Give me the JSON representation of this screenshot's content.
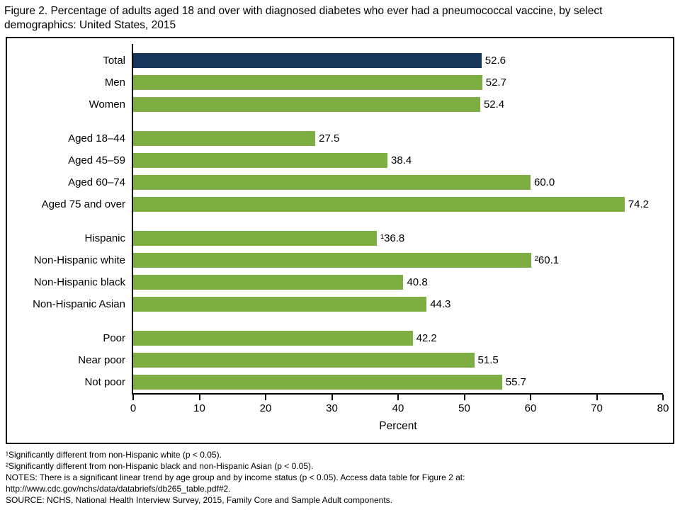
{
  "title": "Figure 2. Percentage of adults aged 18 and over with diagnosed diabetes who ever had a pneumococcal vaccine, by select demographics: United States, 2015",
  "chart_data": {
    "type": "bar",
    "orientation": "horizontal",
    "title": "Figure 2. Percentage of adults aged 18 and over with diagnosed diabetes who ever had a pneumococcal vaccine, by select demographics: United States, 2015",
    "xlabel": "Percent",
    "ylabel": "",
    "xlim": [
      0,
      80
    ],
    "xticks": [
      0,
      10,
      20,
      30,
      40,
      50,
      60,
      70,
      80
    ],
    "grid": false,
    "legend": false,
    "colors": {
      "total_bar": "#16365c",
      "bar": "#7cae41"
    },
    "rows": [
      {
        "label": "Total",
        "value": 52.6,
        "value_label": "52.6",
        "highlight": true
      },
      {
        "label": "Men",
        "value": 52.7,
        "value_label": "52.7",
        "highlight": false
      },
      {
        "label": "Women",
        "value": 52.4,
        "value_label": "52.4",
        "highlight": false
      },
      {
        "label": "Aged 18–44",
        "value": 27.5,
        "value_label": "27.5",
        "highlight": false
      },
      {
        "label": "Aged 45–59",
        "value": 38.4,
        "value_label": "38.4",
        "highlight": false
      },
      {
        "label": "Aged 60–74",
        "value": 60.0,
        "value_label": "60.0",
        "highlight": false
      },
      {
        "label": "Aged 75 and over",
        "value": 74.2,
        "value_label": "74.2",
        "highlight": false
      },
      {
        "label": "Hispanic",
        "value": 36.8,
        "value_label": "¹36.8",
        "highlight": false
      },
      {
        "label": "Non-Hispanic white",
        "value": 60.1,
        "value_label": "²60.1",
        "highlight": false
      },
      {
        "label": "Non-Hispanic black",
        "value": 40.8,
        "value_label": "40.8",
        "highlight": false
      },
      {
        "label": "Non-Hispanic Asian",
        "value": 44.3,
        "value_label": "44.3",
        "highlight": false
      },
      {
        "label": "Poor",
        "value": 42.2,
        "value_label": "42.2",
        "highlight": false
      },
      {
        "label": "Near poor",
        "value": 51.5,
        "value_label": "51.5",
        "highlight": false
      },
      {
        "label": "Not poor",
        "value": 55.7,
        "value_label": "55.7",
        "highlight": false
      }
    ]
  },
  "footnotes": [
    "¹Significantly different from non-Hispanic white (p < 0.05).",
    "²Significantly different from non-Hispanic black and non-Hispanic Asian (p < 0.05).",
    "NOTES: There is a significant linear trend by age group and by income status (p < 0.05). Access data table for Figure 2 at:",
    "http://www.cdc.gov/nchs/data/databriefs/db265_table.pdf#2.",
    "SOURCE: NCHS, National Health Interview Survey, 2015, Family Core and Sample Adult components."
  ]
}
